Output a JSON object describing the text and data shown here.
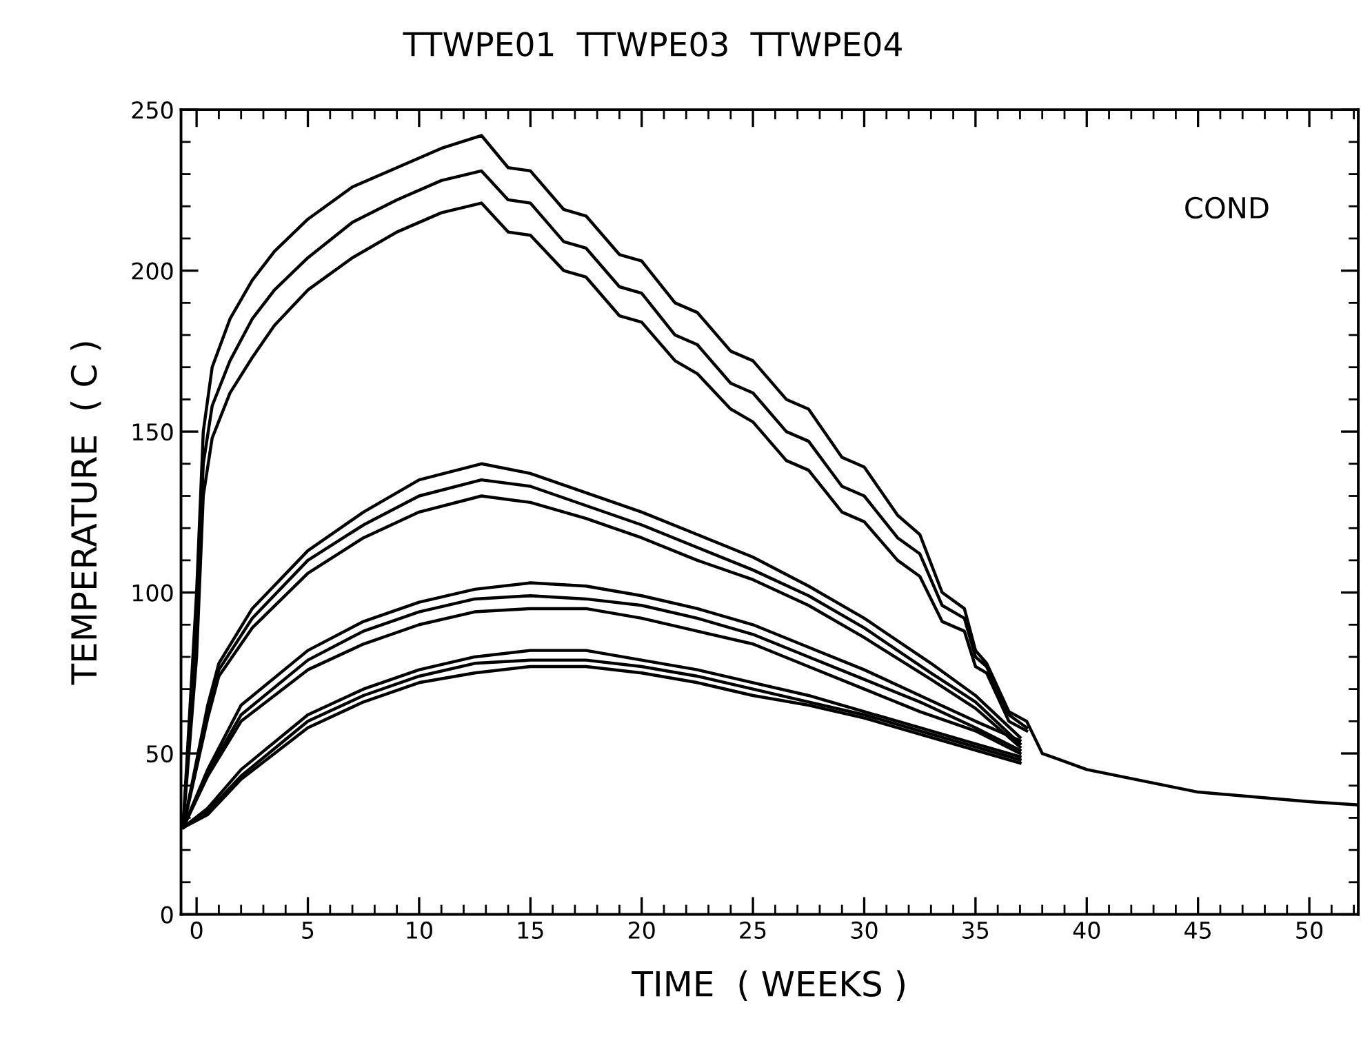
{
  "chart_data": {
    "type": "line",
    "title": "TTWPE01  TTWPE03  TTWPE04",
    "xlabel": "TIME  ( WEEKS )",
    "ylabel": "TEMPERATURE  ( C )",
    "annotations": [
      "COND"
    ],
    "xlim": [
      -0.7,
      52.2
    ],
    "ylim": [
      0,
      250
    ],
    "xticks": [
      0,
      5,
      10,
      15,
      20,
      25,
      30,
      35,
      40,
      45,
      50
    ],
    "yticks": [
      0,
      50,
      100,
      150,
      200,
      250
    ],
    "grid": false,
    "line_style": "solid",
    "marker": "none",
    "series": [
      {
        "color": "#000000",
        "x": [
          -0.6,
          0,
          0.3,
          0.7,
          1.5,
          2.5,
          3.5,
          5,
          7,
          9,
          11,
          12.8,
          14,
          15,
          16.5,
          17.5,
          19,
          20,
          21.5,
          22.5,
          24,
          25,
          26.5,
          27.5,
          29,
          30,
          31.5,
          32.5,
          33.5,
          34.5,
          35,
          35.5,
          36.5,
          37.3,
          38,
          40,
          45,
          50,
          52.2
        ],
        "values": [
          28,
          100,
          150,
          170,
          185,
          197,
          206,
          216,
          226,
          232,
          238,
          242,
          232,
          231,
          219,
          217,
          205,
          203,
          190,
          187,
          175,
          172,
          160,
          157,
          142,
          139,
          124,
          118,
          100,
          95,
          82,
          78,
          63,
          60,
          50,
          45,
          38,
          35,
          34
        ]
      },
      {
        "color": "#000000",
        "x": [
          -0.6,
          0,
          0.3,
          0.7,
          1.5,
          2.5,
          3.5,
          5,
          7,
          9,
          11,
          12.8,
          14,
          15,
          16.5,
          17.5,
          19,
          20,
          21.5,
          22.5,
          24,
          25,
          26.5,
          27.5,
          29,
          30,
          31.5,
          32.5,
          33.5,
          34.5,
          35,
          35.5,
          36.5,
          37.3
        ],
        "values": [
          28,
          90,
          140,
          158,
          172,
          185,
          194,
          204,
          215,
          222,
          228,
          231,
          222,
          221,
          209,
          207,
          195,
          193,
          180,
          177,
          165,
          162,
          150,
          147,
          133,
          130,
          117,
          112,
          96,
          92,
          80,
          77,
          62,
          58
        ]
      },
      {
        "color": "#000000",
        "x": [
          -0.6,
          0,
          0.3,
          0.7,
          1.5,
          2.5,
          3.5,
          5,
          7,
          9,
          11,
          12.8,
          14,
          15,
          16.5,
          17.5,
          19,
          20,
          21.5,
          22.5,
          24,
          25,
          26.5,
          27.5,
          29,
          30,
          31.5,
          32.5,
          33.5,
          34.5,
          35,
          35.5,
          36.5,
          37.3
        ],
        "values": [
          28,
          80,
          130,
          148,
          162,
          173,
          183,
          194,
          204,
          212,
          218,
          221,
          212,
          211,
          200,
          198,
          186,
          184,
          172,
          168,
          157,
          153,
          141,
          138,
          125,
          122,
          110,
          105,
          91,
          88,
          77,
          75,
          60,
          57
        ]
      },
      {
        "color": "#000000",
        "x": [
          -0.6,
          0.5,
          1,
          2.5,
          5,
          7.5,
          10,
          12.8,
          15,
          17.5,
          20,
          22.5,
          25,
          27.5,
          30,
          33,
          35,
          37
        ],
        "values": [
          27,
          65,
          78,
          95,
          113,
          125,
          135,
          140,
          137,
          131,
          125,
          118,
          111,
          102,
          92,
          78,
          68,
          55
        ]
      },
      {
        "color": "#000000",
        "x": [
          -0.6,
          0.5,
          1,
          2.5,
          5,
          7.5,
          10,
          12.8,
          15,
          17.5,
          20,
          22.5,
          25,
          27.5,
          30,
          33,
          35,
          37
        ],
        "values": [
          27,
          63,
          76,
          92,
          110,
          121,
          130,
          135,
          133,
          127,
          121,
          114,
          107,
          99,
          89,
          75,
          66,
          53
        ]
      },
      {
        "color": "#000000",
        "x": [
          -0.6,
          0.5,
          1,
          2.5,
          5,
          7.5,
          10,
          12.8,
          15,
          17.5,
          20,
          22.5,
          25,
          27.5,
          30,
          33,
          35,
          37
        ],
        "values": [
          27,
          61,
          74,
          89,
          106,
          117,
          125,
          130,
          128,
          123,
          117,
          110,
          104,
          96,
          86,
          73,
          64,
          52
        ]
      },
      {
        "color": "#000000",
        "x": [
          -0.6,
          0.5,
          2,
          5,
          7.5,
          10,
          12.5,
          15,
          17.5,
          20,
          22.5,
          25,
          27.5,
          30,
          32.5,
          35,
          37
        ],
        "values": [
          27,
          45,
          65,
          82,
          91,
          97,
          101,
          103,
          102,
          99,
          95,
          90,
          83,
          76,
          68,
          60,
          54
        ]
      },
      {
        "color": "#000000",
        "x": [
          -0.6,
          0.5,
          2,
          5,
          7.5,
          10,
          12.5,
          15,
          17.5,
          20,
          22.5,
          25,
          27.5,
          30,
          32.5,
          35,
          37
        ],
        "values": [
          27,
          44,
          62,
          79,
          88,
          94,
          98,
          99,
          98,
          96,
          92,
          87,
          80,
          73,
          66,
          58,
          51
        ]
      },
      {
        "color": "#000000",
        "x": [
          -0.6,
          0.5,
          2,
          5,
          7.5,
          10,
          12.5,
          15,
          17.5,
          20,
          22.5,
          25,
          27.5,
          30,
          32.5,
          35,
          37
        ],
        "values": [
          27,
          43,
          60,
          76,
          84,
          90,
          94,
          95,
          95,
          92,
          88,
          84,
          77,
          70,
          63,
          57,
          50
        ]
      },
      {
        "color": "#000000",
        "x": [
          -0.6,
          0.5,
          2,
          5,
          7.5,
          10,
          12.5,
          15,
          17.5,
          20,
          22.5,
          25,
          27.5,
          30,
          32.5,
          35,
          37
        ],
        "values": [
          27,
          33,
          45,
          62,
          70,
          76,
          80,
          82,
          82,
          79,
          76,
          72,
          68,
          63,
          58,
          53,
          49
        ]
      },
      {
        "color": "#000000",
        "x": [
          -0.6,
          0.5,
          2,
          5,
          7.5,
          10,
          12.5,
          15,
          17.5,
          20,
          22.5,
          25,
          27.5,
          30,
          32.5,
          35,
          37
        ],
        "values": [
          27,
          32,
          43,
          60,
          68,
          74,
          78,
          79,
          79,
          77,
          74,
          70,
          66,
          62,
          57,
          52,
          48
        ]
      },
      {
        "color": "#000000",
        "x": [
          -0.6,
          0.5,
          2,
          5,
          7.5,
          10,
          12.5,
          15,
          17.5,
          20,
          22.5,
          25,
          27.5,
          30,
          32.5,
          35,
          37
        ],
        "values": [
          27,
          31,
          42,
          58,
          66,
          72,
          75,
          77,
          77,
          75,
          72,
          68,
          65,
          61,
          56,
          51,
          47
        ]
      }
    ]
  }
}
